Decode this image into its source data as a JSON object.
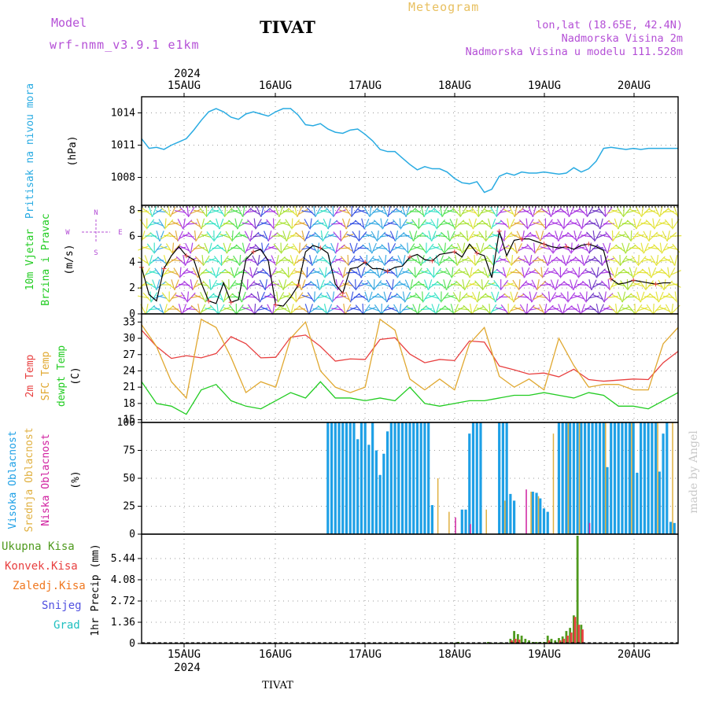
{
  "header": {
    "model_label": "Model",
    "model_name": "wrf-nmm_v3.9.1 e1km",
    "meteogram_label": "Meteogram",
    "station": "TIVAT",
    "lonlat": "lon,lat (18.65E, 42.4N)",
    "elevation": "Nadmorska Visina 2m",
    "model_elevation": "Nadmorska Visina u modelu 111.528m",
    "year_top": "2024",
    "year_bottom": "2024",
    "footer_station": "TIVAT",
    "watermark": "made by Angel"
  },
  "colors": {
    "pressure": "#29abe2",
    "temp2m": "#e84040",
    "sfctemp": "#e0a830",
    "dewpt": "#22cc22",
    "high_cloud": "#1ea0e6",
    "mid_cloud": "#e0b040",
    "low_cloud": "#d020a0",
    "total_precip": "#4f9a1e",
    "conv_precip": "#e84040",
    "frozen_precip": "#f07820",
    "snow": "#5050e0",
    "graupel": "#20c0c0",
    "purple_text": "#b44fd6"
  },
  "chart_data": [
    {
      "type": "line",
      "panel": "pressure",
      "ylabel_lines": [
        "Pritisak na nivou mora"
      ],
      "unit": "(hPa)",
      "x_labels": [
        "15AUG",
        "16AUG",
        "17AUG",
        "18AUG",
        "19AUG",
        "20AUG"
      ],
      "x_range_hours": [
        0,
        144
      ],
      "ylim": [
        1005.4,
        1015.5
      ],
      "yticks": [
        1008,
        1011,
        1014
      ],
      "grid": true,
      "series": [
        {
          "x": [
            0,
            2,
            4,
            6,
            8,
            10,
            12,
            14,
            16,
            18,
            20,
            22,
            24,
            26,
            28,
            30,
            32,
            34,
            36,
            38,
            40,
            42,
            44,
            46,
            48,
            50,
            52,
            54,
            56,
            58,
            60,
            62,
            64,
            66,
            68,
            70,
            72,
            74,
            76,
            78,
            80,
            82,
            84,
            86,
            88,
            90,
            92,
            94,
            96,
            98,
            100,
            102,
            104,
            106,
            108,
            110,
            112,
            114,
            116,
            118,
            120,
            122,
            124,
            126,
            128,
            130,
            132,
            134,
            136,
            138,
            140,
            142,
            144
          ],
          "values": [
            1011.6,
            1010.7,
            1010.8,
            1010.6,
            1011.0,
            1011.3,
            1011.6,
            1012.4,
            1013.3,
            1014.1,
            1014.4,
            1014.1,
            1013.6,
            1013.4,
            1013.9,
            1014.1,
            1013.9,
            1013.7,
            1014.1,
            1014.4,
            1014.4,
            1013.8,
            1012.9,
            1012.8,
            1013.0,
            1012.5,
            1012.2,
            1012.1,
            1012.4,
            1012.5,
            1012.0,
            1011.4,
            1010.6,
            1010.4,
            1010.4,
            1009.8,
            1009.2,
            1008.7,
            1009.0,
            1008.8,
            1008.8,
            1008.5,
            1007.9,
            1007.5,
            1007.4,
            1007.6,
            1006.6,
            1006.9,
            1008.1,
            1008.4,
            1008.2,
            1008.5,
            1008.4,
            1008.4,
            1008.5,
            1008.4,
            1008.3,
            1008.4,
            1008.9,
            1008.5,
            1008.8,
            1009.5,
            1010.7,
            1010.8,
            1010.7,
            1010.6,
            1010.7,
            1010.6,
            1010.7,
            1010.7,
            1010.7,
            1010.7,
            1010.7
          ]
        }
      ]
    },
    {
      "type": "line",
      "panel": "wind",
      "ylabel_lines": [
        "10m Vjetar",
        "Brzina i Pravac"
      ],
      "unit": "(m/s)",
      "compass": {
        "n": "N",
        "w": "W",
        "e": "E",
        "s": "S"
      },
      "ylim": [
        0,
        8.4
      ],
      "yticks": [
        0,
        2,
        4,
        6,
        8
      ],
      "grid": true,
      "series": [
        {
          "name": "speed",
          "x": [
            0,
            2,
            4,
            6,
            8,
            10,
            12,
            14,
            16,
            18,
            20,
            22,
            24,
            26,
            28,
            30,
            32,
            34,
            36,
            38,
            40,
            42,
            44,
            46,
            48,
            50,
            52,
            54,
            56,
            58,
            60,
            62,
            64,
            66,
            68,
            70,
            72,
            74,
            76,
            78,
            80,
            82,
            84,
            86,
            88,
            90,
            92,
            94,
            96,
            98,
            100,
            102,
            104,
            106,
            108,
            110,
            112,
            114,
            116,
            118,
            120,
            122,
            124,
            126,
            128,
            130,
            132,
            134,
            136,
            138,
            140,
            142
          ],
          "values": [
            3.6,
            1.5,
            1.0,
            3.5,
            4.5,
            5.2,
            4.5,
            4.2,
            2.4,
            1.0,
            0.8,
            2.4,
            0.9,
            1.1,
            4.2,
            4.8,
            5.0,
            4.1,
            0.7,
            0.6,
            1.3,
            2.2,
            4.8,
            5.3,
            5.1,
            4.7,
            2.3,
            1.6,
            3.5,
            3.6,
            4.0,
            3.5,
            3.5,
            3.3,
            3.6,
            3.7,
            4.4,
            4.6,
            4.2,
            4.1,
            4.6,
            4.7,
            4.8,
            4.4,
            5.4,
            4.7,
            4.5,
            2.8,
            6.4,
            4.5,
            5.7,
            5.8,
            5.8,
            5.6,
            5.4,
            5.2,
            5.1,
            5.2,
            5.0,
            5.3,
            5.4,
            5.2,
            4.9,
            2.7,
            2.3,
            2.4,
            2.6,
            2.5,
            2.4,
            2.3,
            2.4,
            2.4
          ]
        }
      ]
    },
    {
      "type": "line",
      "panel": "temperature",
      "ylabel_lines": [
        "2m Temp",
        "SFC Temp",
        "dewpt Temp"
      ],
      "unit": "(C)",
      "ylim": [
        14.5,
        34.5
      ],
      "yticks": [
        15,
        18,
        21,
        24,
        27,
        30,
        33
      ],
      "grid": true,
      "series": [
        {
          "name": "2m Temp",
          "x": [
            0,
            4,
            8,
            12,
            16,
            20,
            24,
            28,
            32,
            36,
            40,
            44,
            48,
            52,
            56,
            60,
            64,
            68,
            72,
            76,
            80,
            84,
            88,
            92,
            96,
            100,
            104,
            108,
            112,
            116,
            120,
            124,
            128,
            132,
            136,
            140,
            144
          ],
          "values": [
            31.5,
            28.5,
            26.3,
            26.8,
            26.4,
            27.2,
            30.3,
            29.0,
            26.4,
            26.5,
            30.2,
            30.6,
            28.5,
            25.8,
            26.2,
            26.1,
            29.8,
            30.1,
            27.1,
            25.5,
            26.1,
            25.9,
            29.5,
            29.3,
            24.9,
            24.2,
            23.4,
            23.6,
            22.9,
            24.3,
            22.4,
            22.1,
            22.3,
            22.5,
            22.4,
            25.5,
            27.6
          ]
        },
        {
          "name": "SFC Temp",
          "x": [
            0,
            4,
            8,
            12,
            16,
            20,
            24,
            28,
            32,
            36,
            40,
            44,
            48,
            52,
            56,
            60,
            64,
            68,
            72,
            76,
            80,
            84,
            88,
            92,
            96,
            100,
            104,
            108,
            112,
            116,
            120,
            124,
            128,
            132,
            136,
            140,
            144
          ],
          "values": [
            32.5,
            28.5,
            22.0,
            19.0,
            33.5,
            32.0,
            26.5,
            20.0,
            22.0,
            21.0,
            30.0,
            33.0,
            24.0,
            21.0,
            20.0,
            21.0,
            33.5,
            31.5,
            22.5,
            20.5,
            22.5,
            20.5,
            29.0,
            32.0,
            23.0,
            21.0,
            22.5,
            20.5,
            30.0,
            25.0,
            21.0,
            21.5,
            21.5,
            20.5,
            20.5,
            29.0,
            32.0
          ]
        },
        {
          "name": "dewpt Temp",
          "x": [
            0,
            4,
            8,
            12,
            16,
            20,
            24,
            28,
            32,
            36,
            40,
            44,
            48,
            52,
            56,
            60,
            64,
            68,
            72,
            76,
            80,
            84,
            88,
            92,
            96,
            100,
            104,
            108,
            112,
            116,
            120,
            124,
            128,
            132,
            136,
            140,
            144
          ],
          "values": [
            22.0,
            18.0,
            17.5,
            16.0,
            20.5,
            21.5,
            18.5,
            17.5,
            17.0,
            18.5,
            20.0,
            19.0,
            22.0,
            19.0,
            19.0,
            18.5,
            19.0,
            18.5,
            21.0,
            18.0,
            17.5,
            18.0,
            18.5,
            18.5,
            19.0,
            19.5,
            19.5,
            20.0,
            19.5,
            19.0,
            20.0,
            19.5,
            17.5,
            17.5,
            17.0,
            18.5,
            20.0
          ]
        }
      ]
    },
    {
      "type": "bar",
      "panel": "clouds",
      "ylabel_lines": [
        "Visoka Oblacnost",
        "Srednja Oblacnost",
        "Niska Oblacnost"
      ],
      "unit": "(%)",
      "ylim": [
        0,
        100
      ],
      "yticks": [
        0,
        25,
        50,
        75,
        100
      ],
      "grid": true,
      "series": [
        {
          "name": "Visoka Oblacnost",
          "x": [
            50,
            51,
            52,
            53,
            54,
            55,
            56,
            57,
            58,
            59,
            60,
            61,
            62,
            63,
            64,
            65,
            66,
            67,
            68,
            69,
            70,
            71,
            72,
            73,
            74,
            75,
            76,
            77,
            78,
            86,
            87,
            88,
            89,
            90,
            91,
            96,
            97,
            98,
            99,
            100,
            105,
            106,
            107,
            108,
            109,
            112,
            113,
            114,
            115,
            116,
            117,
            118,
            119,
            120,
            121,
            122,
            123,
            124,
            125,
            126,
            127,
            128,
            129,
            130,
            131,
            132,
            133,
            134,
            135,
            136,
            137,
            138,
            139,
            140,
            141,
            142,
            143
          ],
          "values": [
            100,
            100,
            100,
            100,
            100,
            100,
            100,
            100,
            85,
            100,
            100,
            80,
            100,
            75,
            53,
            72,
            92,
            100,
            100,
            100,
            100,
            100,
            100,
            100,
            100,
            100,
            100,
            100,
            26,
            22,
            22,
            90,
            100,
            100,
            100,
            100,
            100,
            100,
            36,
            30,
            38,
            37,
            32,
            23,
            20,
            100,
            100,
            100,
            100,
            100,
            100,
            100,
            100,
            100,
            100,
            100,
            100,
            100,
            60,
            100,
            100,
            100,
            100,
            100,
            100,
            100,
            55,
            100,
            100,
            100,
            100,
            100,
            56,
            90,
            100,
            11,
            10
          ]
        },
        {
          "name": "Srednja Oblacnost",
          "x": [
            79,
            82,
            92,
            97,
            104,
            106,
            110,
            114,
            117,
            124,
            131,
            138,
            142
          ],
          "values": [
            50,
            20,
            22,
            30,
            38,
            34,
            90,
            100,
            100,
            100,
            100,
            100,
            100
          ]
        },
        {
          "name": "Niska Oblacnost",
          "x": [
            84,
            88,
            103,
            120
          ],
          "values": [
            15,
            9,
            40,
            10
          ]
        }
      ]
    },
    {
      "type": "bar",
      "panel": "precip",
      "ylabel_lines": [
        "1hr Precip"
      ],
      "unit": "(mm)",
      "legend": [
        "Ukupna Kisa",
        "Konvek.Kisa",
        "Zaledj.Kisa",
        "Snijeg",
        "Grad"
      ],
      "ylim": [
        0,
        7.0
      ],
      "yticks": [
        0,
        1.36,
        2.72,
        4.08,
        5.44
      ],
      "grid": true,
      "series": [
        {
          "name": "Ukupna Kisa",
          "x": [
            84,
            85,
            92,
            93,
            94,
            95,
            96,
            97,
            98,
            99,
            100,
            101,
            102,
            103,
            104,
            105,
            106,
            107,
            108,
            109,
            110,
            111,
            112,
            113,
            114,
            115,
            116,
            117,
            118
          ],
          "values": [
            0.05,
            0.1,
            0.05,
            0.1,
            0.05,
            0.05,
            0.05,
            0.05,
            0.05,
            0.3,
            0.8,
            0.6,
            0.5,
            0.3,
            0.2,
            0.1,
            0.1,
            0.1,
            0.1,
            0.5,
            0.3,
            0.2,
            0.35,
            0.45,
            0.8,
            1.0,
            1.8,
            6.9,
            1.2
          ]
        },
        {
          "name": "Konvek.Kisa",
          "x": [
            99,
            100,
            101,
            109,
            112,
            113,
            114,
            115,
            116,
            117,
            118
          ],
          "values": [
            0.2,
            0.3,
            0.25,
            0.2,
            0.2,
            0.3,
            0.5,
            0.7,
            1.7,
            1.2,
            0.9
          ]
        }
      ]
    }
  ]
}
